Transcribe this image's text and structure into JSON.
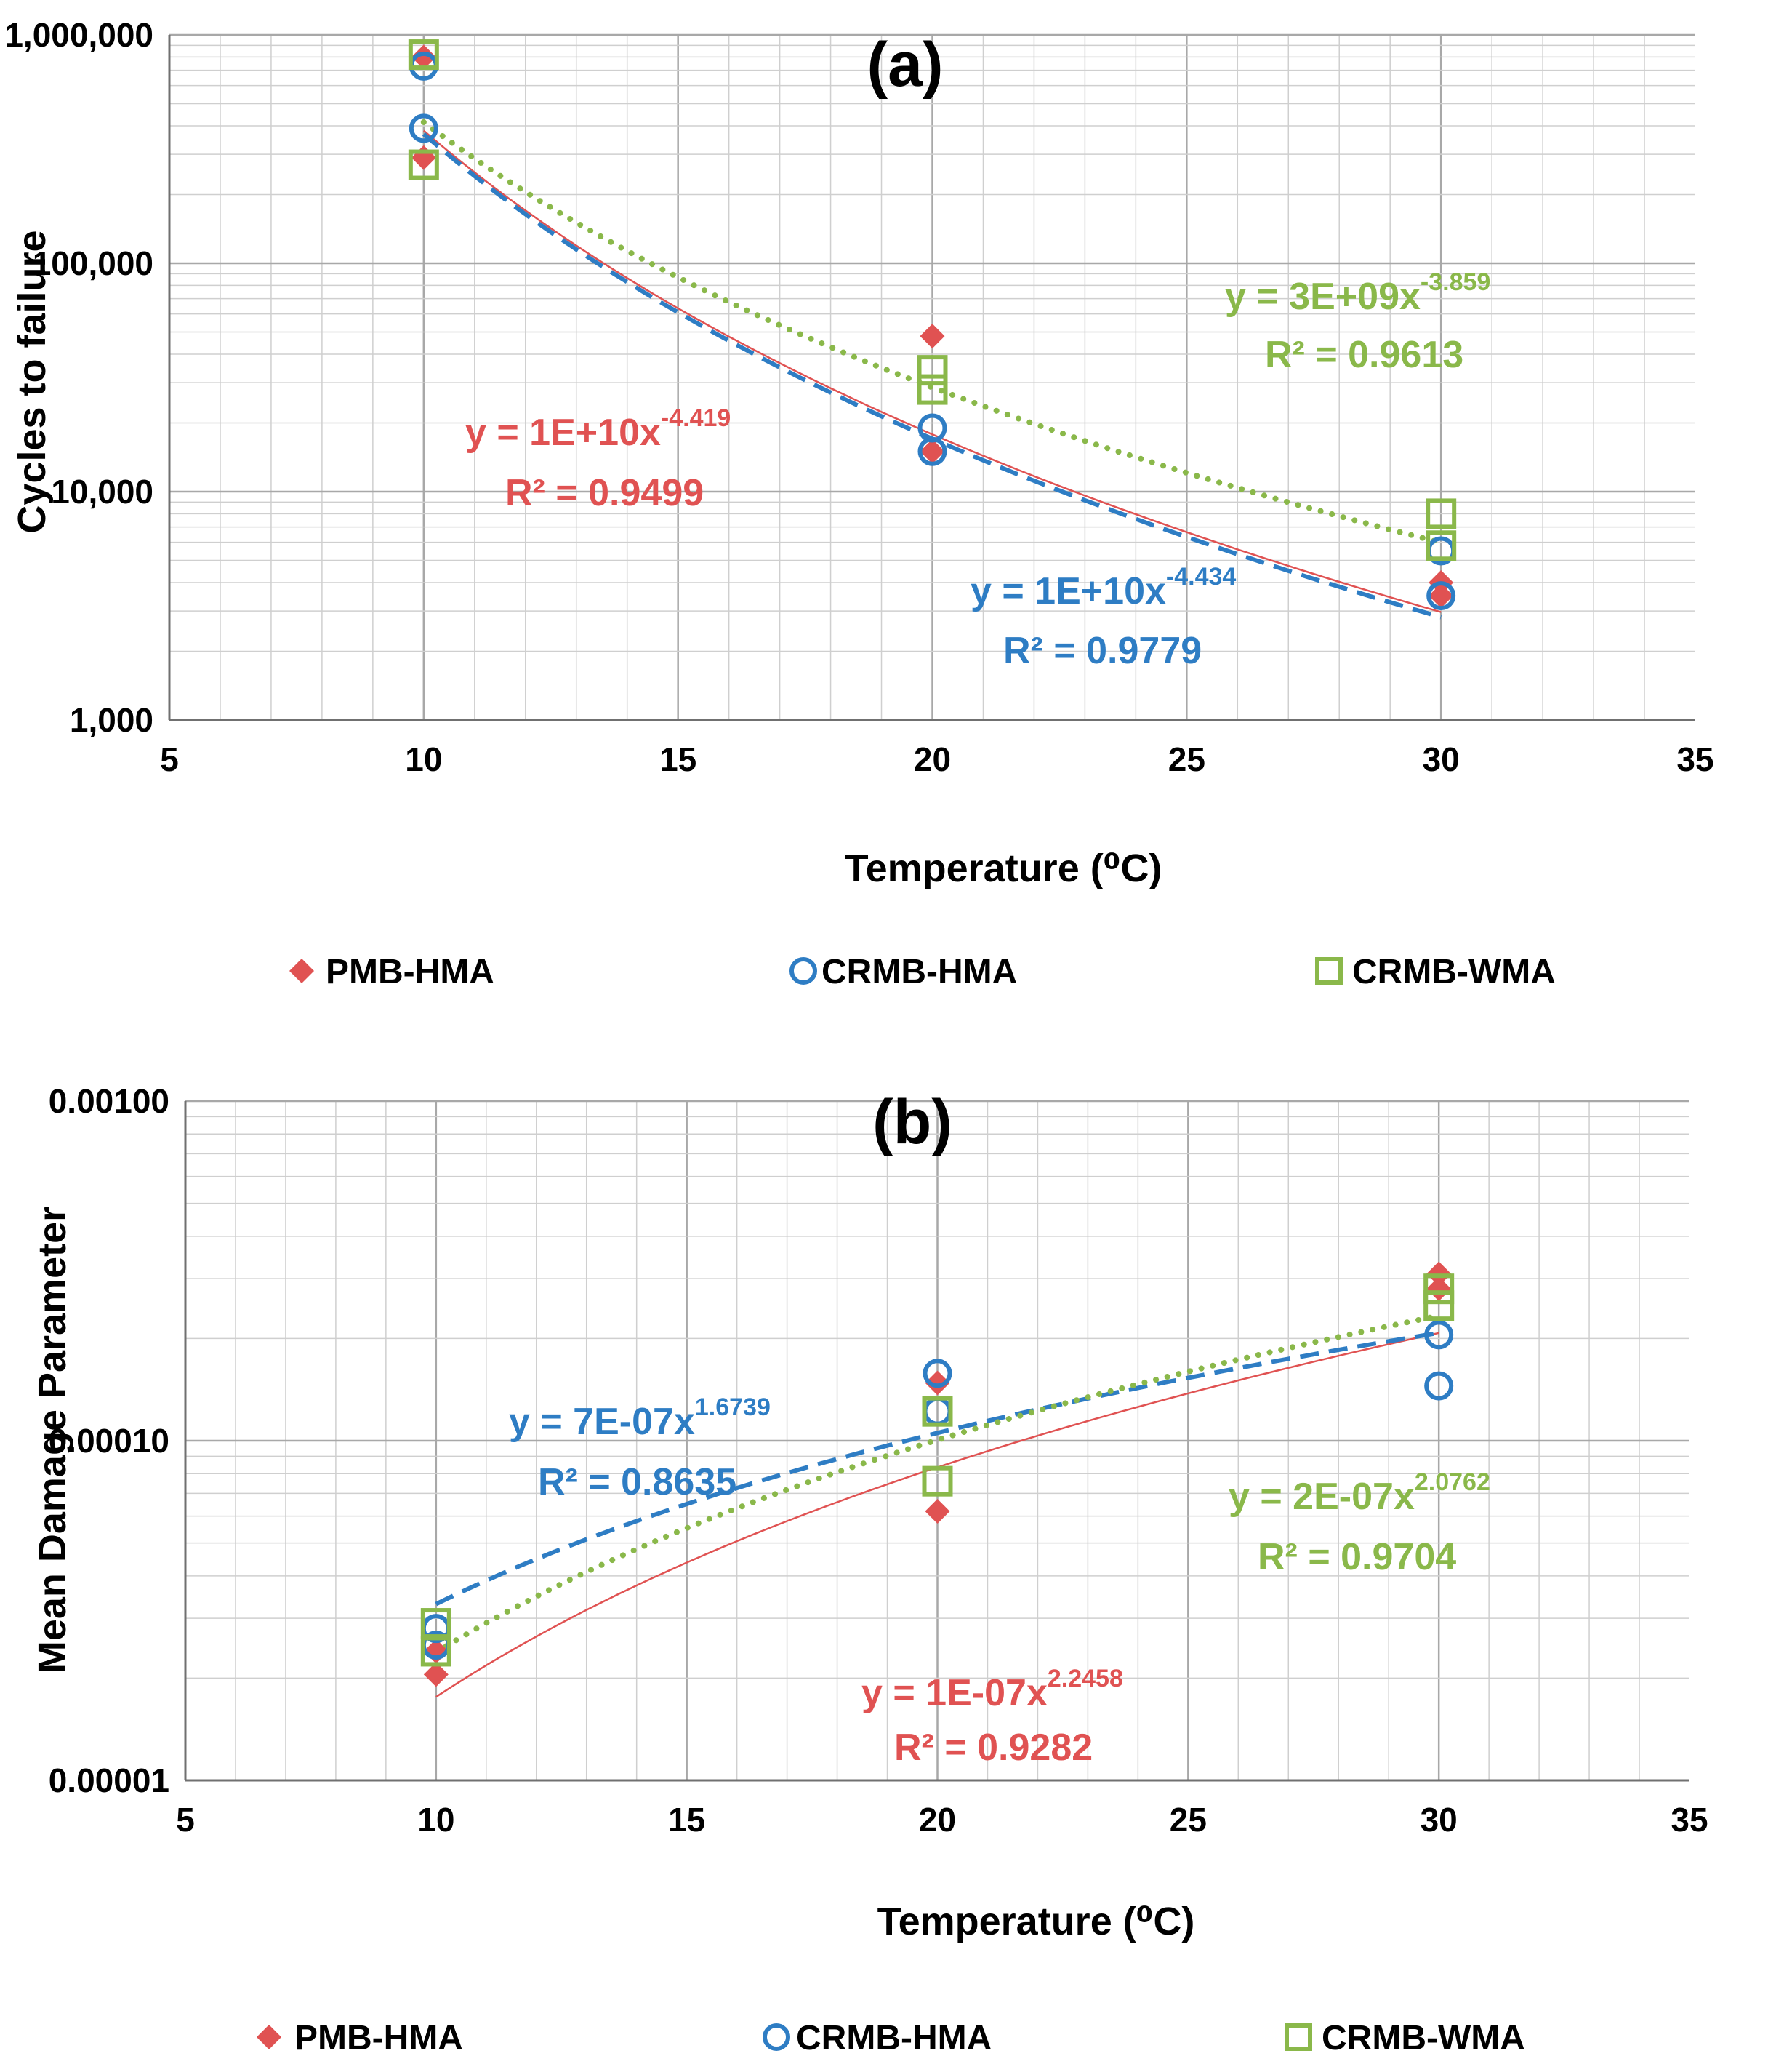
{
  "chart_data": [
    {
      "type": "scatter",
      "panel_label": "(a)",
      "xlabel": "Temperature (⁰C)",
      "ylabel": "Cycles to failure",
      "xlim": [
        5,
        35
      ],
      "ylim": [
        1000,
        1000000
      ],
      "yscale": "log",
      "x_ticks": [
        "5",
        "10",
        "15",
        "20",
        "25",
        "30",
        "35"
      ],
      "y_ticks": [
        "1,000",
        "10,000",
        "100,000",
        "1,000,000"
      ],
      "series": [
        {
          "name": "PMB-HMA",
          "color": "#e05252",
          "marker": "diamond",
          "points": [
            [
              10,
              800000
            ],
            [
              10,
              290000
            ],
            [
              20,
              48000
            ],
            [
              20,
              15000
            ],
            [
              30,
              4000
            ],
            [
              30,
              3500
            ]
          ],
          "trendline": {
            "a": 10000000000,
            "b": -4.419,
            "style": "solid",
            "equation": "y = 1E+10x",
            "exponent": "-4.419",
            "r2": "R² = 0.9499"
          }
        },
        {
          "name": "CRMB-HMA",
          "color": "#2e7dc4",
          "marker": "circle",
          "points": [
            [
              10,
              730000
            ],
            [
              10,
              390000
            ],
            [
              20,
              19000
            ],
            [
              20,
              15000
            ],
            [
              30,
              5500
            ],
            [
              30,
              3500
            ]
          ],
          "trendline": {
            "a": 10000000000,
            "b": -4.434,
            "style": "dashed",
            "equation": "y = 1E+10x",
            "exponent": "-4.434",
            "r2": "R² = 0.9779"
          }
        },
        {
          "name": "CRMB-WMA",
          "color": "#8ab84a",
          "marker": "square",
          "points": [
            [
              10,
              820000
            ],
            [
              10,
              270000
            ],
            [
              20,
              34000
            ],
            [
              20,
              28000
            ],
            [
              30,
              8000
            ],
            [
              30,
              5800
            ]
          ],
          "trendline": {
            "a": 3000000000,
            "b": -3.859,
            "style": "dotted",
            "equation": "y = 3E+09x",
            "exponent": "-3.859",
            "r2": "R² = 0.9613"
          }
        }
      ]
    },
    {
      "type": "scatter",
      "panel_label": "(b)",
      "xlabel": "Temperature (⁰C)",
      "ylabel": "Mean Damage Parameter",
      "xlim": [
        5,
        35
      ],
      "ylim": [
        1e-05,
        0.001
      ],
      "yscale": "log",
      "x_ticks": [
        "5",
        "10",
        "15",
        "20",
        "25",
        "30",
        "35"
      ],
      "y_ticks": [
        "0.00001",
        "0.00010",
        "0.00100"
      ],
      "series": [
        {
          "name": "PMB-HMA",
          "color": "#e05252",
          "marker": "diamond",
          "points": [
            [
              10,
              2.05e-05
            ],
            [
              10,
              2.4e-05
            ],
            [
              20,
              0.000148
            ],
            [
              20,
              6.2e-05
            ],
            [
              30,
              0.00031
            ],
            [
              30,
              0.00028
            ]
          ],
          "trendline": {
            "a": 1e-07,
            "b": 2.2458,
            "style": "solid",
            "equation": "y = 1E-07x",
            "exponent": "2.2458",
            "r2": "R² = 0.9282"
          }
        },
        {
          "name": "CRMB-HMA",
          "color": "#2e7dc4",
          "marker": "circle",
          "points": [
            [
              10,
              2.8e-05
            ],
            [
              10,
              2.5e-05
            ],
            [
              20,
              0.000158
            ],
            [
              20,
              0.000122
            ],
            [
              30,
              0.000205
            ],
            [
              30,
              0.000145
            ]
          ],
          "trendline": {
            "a": 7e-07,
            "b": 1.6739,
            "style": "dashed",
            "equation": "y = 7E-07x",
            "exponent": "1.6739",
            "r2": "R² = 0.8635"
          }
        },
        {
          "name": "CRMB-WMA",
          "color": "#8ab84a",
          "marker": "square",
          "points": [
            [
              10,
              2.9e-05
            ],
            [
              10,
              2.4e-05
            ],
            [
              20,
              0.000122
            ],
            [
              20,
              7.6e-05
            ],
            [
              30,
              0.00028
            ],
            [
              30,
              0.00025
            ]
          ],
          "trendline": {
            "a": 2e-07,
            "b": 2.0762,
            "style": "dotted",
            "equation": "y = 2E-07x",
            "exponent": "2.0762",
            "r2": "R² = 0.9704"
          }
        }
      ]
    }
  ]
}
